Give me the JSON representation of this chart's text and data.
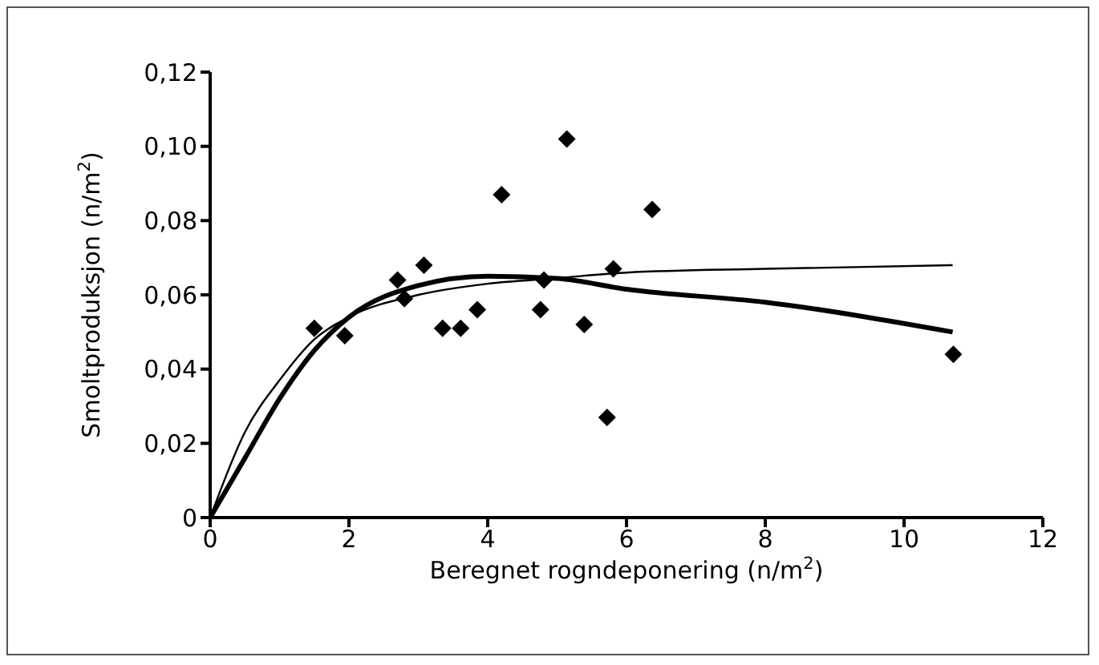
{
  "chart_data": {
    "type": "scatter",
    "xlabel": "Beregnet rogndeponering (n/m$^{2}$)",
    "ylabel": "Smoltproduksjon (n/m$^{2}$)",
    "xlim": [
      0,
      12
    ],
    "xticks": [
      0,
      2,
      4,
      6,
      8,
      10,
      12
    ],
    "ylim": [
      0,
      0.12
    ],
    "yticks": [
      {
        "value": 0,
        "label": "0"
      },
      {
        "value": 0.02,
        "label": "0,02"
      },
      {
        "value": 0.04,
        "label": "0,04"
      },
      {
        "value": 0.06,
        "label": "0,06"
      },
      {
        "value": 0.08,
        "label": "0,08"
      },
      {
        "value": 0.1,
        "label": "0,10"
      },
      {
        "value": 0.12,
        "label": "0,12"
      }
    ],
    "grid": false,
    "series": [
      {
        "marker": "diamond",
        "color": "#000000",
        "x": [
          1.5,
          1.94,
          2.7,
          2.8,
          3.08,
          3.35,
          3.61,
          3.85,
          4.2,
          4.76,
          4.81,
          5.14,
          5.39,
          5.72,
          5.81,
          6.37,
          10.71
        ],
        "values": [
          0.051,
          0.049,
          0.064,
          0.059,
          0.068,
          0.051,
          0.051,
          0.056,
          0.087,
          0.056,
          0.064,
          0.102,
          0.052,
          0.027,
          0.067,
          0.083,
          0.044
        ]
      },
      {
        "type": "line",
        "marker": "none",
        "color": "#000000",
        "line_style": "solid",
        "x": [
          0,
          0.5,
          1,
          1.5,
          2,
          3,
          4,
          5,
          6,
          8,
          10.7
        ],
        "values": [
          0,
          0.023,
          0.037,
          0.048,
          0.054,
          0.06,
          0.063,
          0.0645,
          0.066,
          0.067,
          0.068
        ]
      },
      {
        "type": "line",
        "marker": "none",
        "color": "#000000",
        "line_style": "solid",
        "x": [
          0,
          0.5,
          1,
          1.5,
          2,
          3,
          4,
          5,
          6,
          8,
          10.7
        ],
        "values": [
          0,
          0.016,
          0.032,
          0.045,
          0.054,
          0.0625,
          0.065,
          0.0644,
          0.0615,
          0.058,
          0.05
        ]
      }
    ]
  }
}
